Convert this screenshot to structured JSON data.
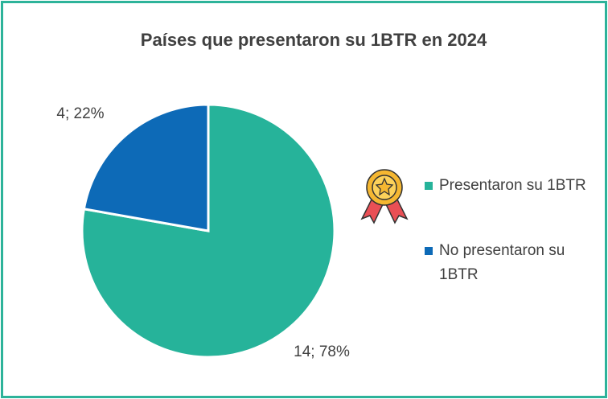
{
  "chart_data": {
    "type": "pie",
    "title": "Países que presentaron su 1BTR en 2024",
    "categories": [
      "Presentaron su 1BTR",
      "No presentaron su 1BTR"
    ],
    "values": [
      14,
      4
    ],
    "value_labels": [
      "14; 78%",
      "4; 22%"
    ],
    "colors": [
      "#26b39a",
      "#0d6ab7"
    ],
    "legend": "right"
  }
}
